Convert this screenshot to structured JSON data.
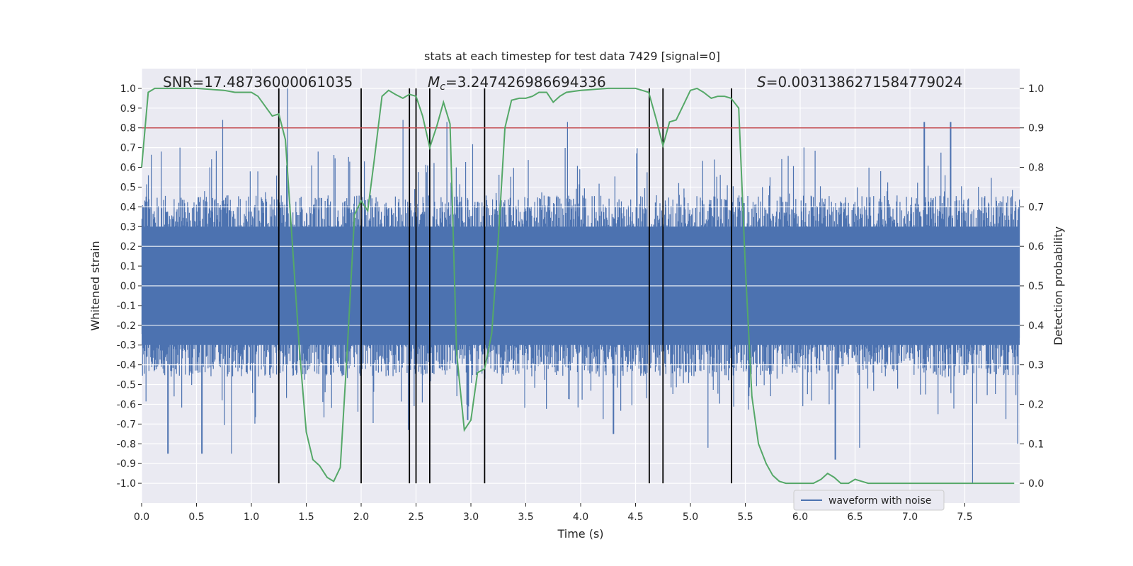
{
  "chart_data": {
    "type": "line",
    "title": "stats at each timestep for test data 7429 [signal=0]",
    "xlabel": "Time (s)",
    "ylabel_left": "Whitened strain",
    "ylabel_right": "Detection probability",
    "xlim": [
      0.0,
      8.0
    ],
    "ylim_left": [
      -1.1,
      1.1
    ],
    "ylim_right": [
      -0.05,
      1.05
    ],
    "x_ticks": [
      "0.0",
      "0.5",
      "1.0",
      "1.5",
      "2.0",
      "2.5",
      "3.0",
      "3.5",
      "4.0",
      "4.5",
      "5.0",
      "5.5",
      "6.0",
      "6.5",
      "7.0",
      "7.5"
    ],
    "y_ticks_left": [
      "-1.0",
      "-0.9",
      "-0.8",
      "-0.7",
      "-0.6",
      "-0.5",
      "-0.4",
      "-0.3",
      "-0.2",
      "-0.1",
      "0.0",
      "0.1",
      "0.2",
      "0.3",
      "0.4",
      "0.5",
      "0.6",
      "0.7",
      "0.8",
      "0.9",
      "1.0"
    ],
    "y_ticks_right": [
      "0.0",
      "0.1",
      "0.2",
      "0.3",
      "0.4",
      "0.5",
      "0.6",
      "0.7",
      "0.8",
      "0.9",
      "1.0"
    ],
    "grid": true,
    "annotations": {
      "snr": "SNR=17.48736000061035",
      "mc_symbol": "M",
      "mc_sub": "c",
      "mc_value": "=3.247426986694336",
      "s_symbol": "S",
      "s_value": "=0.0031386271584779024"
    },
    "threshold_right": 0.9,
    "vertical_lines_x": [
      1.25,
      2.0,
      2.44,
      2.5,
      2.625,
      3.125,
      4.625,
      4.75,
      5.375
    ],
    "legend": {
      "label": "waveform with noise",
      "placement": "lower right"
    },
    "waveform": {
      "name": "waveform with noise",
      "color": "#4c72b0",
      "typical_amplitude": 0.4,
      "spikes": [
        {
          "x": 0.18,
          "y": 0.68
        },
        {
          "x": 0.24,
          "y": -0.85
        },
        {
          "x": 0.35,
          "y": 0.7
        },
        {
          "x": 0.55,
          "y": -0.85
        },
        {
          "x": 0.62,
          "y": 0.6
        },
        {
          "x": 0.74,
          "y": 0.84
        },
        {
          "x": 0.82,
          "y": -0.85
        },
        {
          "x": 1.33,
          "y": 1.0
        },
        {
          "x": 2.03,
          "y": 0.63
        },
        {
          "x": 2.38,
          "y": 0.84
        },
        {
          "x": 2.43,
          "y": -0.73
        },
        {
          "x": 2.78,
          "y": 0.83
        },
        {
          "x": 2.97,
          "y": -0.68
        },
        {
          "x": 3.88,
          "y": 0.83
        },
        {
          "x": 4.3,
          "y": -0.75
        },
        {
          "x": 5.16,
          "y": -0.82
        },
        {
          "x": 6.32,
          "y": -0.88
        },
        {
          "x": 6.54,
          "y": -0.82
        },
        {
          "x": 7.13,
          "y": 0.83
        },
        {
          "x": 7.37,
          "y": 0.83
        },
        {
          "x": 7.57,
          "y": -1.0
        },
        {
          "x": 7.98,
          "y": -0.8
        }
      ]
    },
    "probability": {
      "color": "#55a868",
      "x": [
        0.0,
        0.06,
        0.12,
        0.25,
        0.5,
        0.75,
        0.85,
        1.0,
        1.06,
        1.19,
        1.25,
        1.31,
        1.37,
        1.44,
        1.5,
        1.56,
        1.62,
        1.69,
        1.75,
        1.81,
        1.87,
        1.94,
        2.0,
        2.06,
        2.12,
        2.19,
        2.25,
        2.31,
        2.38,
        2.44,
        2.5,
        2.56,
        2.625,
        2.69,
        2.75,
        2.81,
        2.87,
        2.94,
        3.0,
        3.06,
        3.125,
        3.19,
        3.25,
        3.31,
        3.37,
        3.44,
        3.5,
        3.56,
        3.62,
        3.69,
        3.75,
        3.81,
        3.87,
        4.0,
        4.25,
        4.5,
        4.56,
        4.62,
        4.69,
        4.75,
        4.81,
        4.87,
        4.94,
        5.0,
        5.06,
        5.12,
        5.19,
        5.25,
        5.31,
        5.37,
        5.44,
        5.5,
        5.56,
        5.62,
        5.69,
        5.75,
        5.81,
        5.87,
        6.0,
        6.12,
        6.19,
        6.25,
        6.31,
        6.37,
        6.44,
        6.5,
        6.56,
        6.62,
        6.69,
        6.75,
        6.81,
        6.87,
        7.0,
        7.12,
        7.25,
        7.5,
        7.75,
        7.95
      ],
      "y": [
        0.8,
        0.99,
        1.0,
        1.0,
        1.0,
        0.995,
        0.99,
        0.99,
        0.98,
        0.93,
        0.935,
        0.87,
        0.62,
        0.33,
        0.13,
        0.06,
        0.045,
        0.015,
        0.005,
        0.04,
        0.32,
        0.68,
        0.715,
        0.69,
        0.82,
        0.98,
        0.995,
        0.985,
        0.975,
        0.985,
        0.98,
        0.93,
        0.85,
        0.905,
        0.965,
        0.91,
        0.33,
        0.135,
        0.16,
        0.28,
        0.29,
        0.38,
        0.62,
        0.9,
        0.97,
        0.975,
        0.975,
        0.98,
        0.99,
        0.99,
        0.965,
        0.98,
        0.99,
        0.995,
        1.0,
        1.0,
        0.995,
        0.99,
        0.92,
        0.855,
        0.915,
        0.92,
        0.96,
        0.995,
        1.0,
        0.99,
        0.975,
        0.98,
        0.98,
        0.975,
        0.95,
        0.55,
        0.22,
        0.1,
        0.05,
        0.02,
        0.005,
        0.0,
        0.0,
        0.0,
        0.01,
        0.025,
        0.015,
        0.0,
        0.0,
        0.01,
        0.005,
        0.0,
        0.0,
        0.0,
        0.0,
        0.0,
        0.0,
        0.0,
        0.0,
        0.0,
        0.0,
        0.0
      ]
    }
  }
}
